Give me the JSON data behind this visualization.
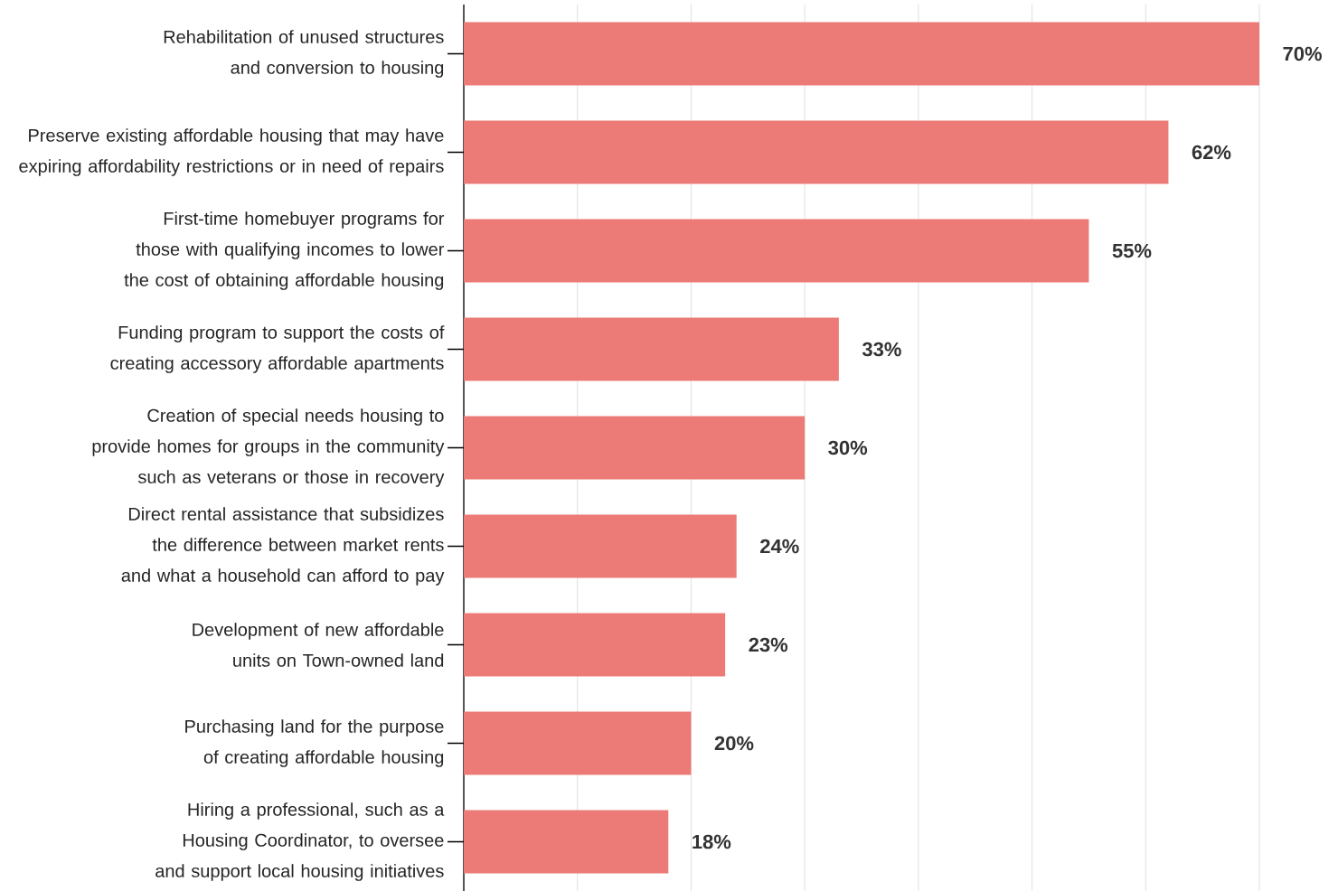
{
  "chart_data": {
    "type": "bar",
    "orientation": "horizontal",
    "categories": [
      "Rehabilitation of unused structures and conversion to housing",
      "Preserve existing affordable housing that may have expiring affordability restrictions or in need of repairs",
      "First-time homebuyer programs for those with qualifying incomes to lower the cost of obtaining affordable housing",
      "Funding program to support the costs of creating accessory affordable apartments",
      "Creation of special needs housing to provide homes for groups in the community such as veterans or those in recovery",
      "Direct rental assistance that subsidizes the difference between market rents and what a household can afford to pay",
      "Development of new affordable units on Town-owned land",
      "Purchasing land for the purpose of creating affordable housing",
      "Hiring a professional, such as a Housing Coordinator, to oversee and support local housing initiatives"
    ],
    "values": [
      70,
      62,
      55,
      33,
      30,
      24,
      23,
      20,
      18
    ],
    "value_labels": [
      "70%",
      "62%",
      "55%",
      "33%",
      "30%",
      "24%",
      "23%",
      "20%",
      "18%"
    ],
    "color": "#ec7b77",
    "xlim": [
      0,
      70
    ],
    "xticks": [
      {
        "value": 0,
        "label": null
      },
      {
        "value": 10,
        "label": null
      },
      {
        "value": 20,
        "label": null
      },
      {
        "value": 30,
        "label": null
      },
      {
        "value": 40,
        "label": null
      },
      {
        "value": 50,
        "label": null
      },
      {
        "value": 60,
        "label": null
      },
      {
        "value": 70,
        "label": null
      }
    ],
    "grid": "x",
    "tick_labels": "y"
  }
}
